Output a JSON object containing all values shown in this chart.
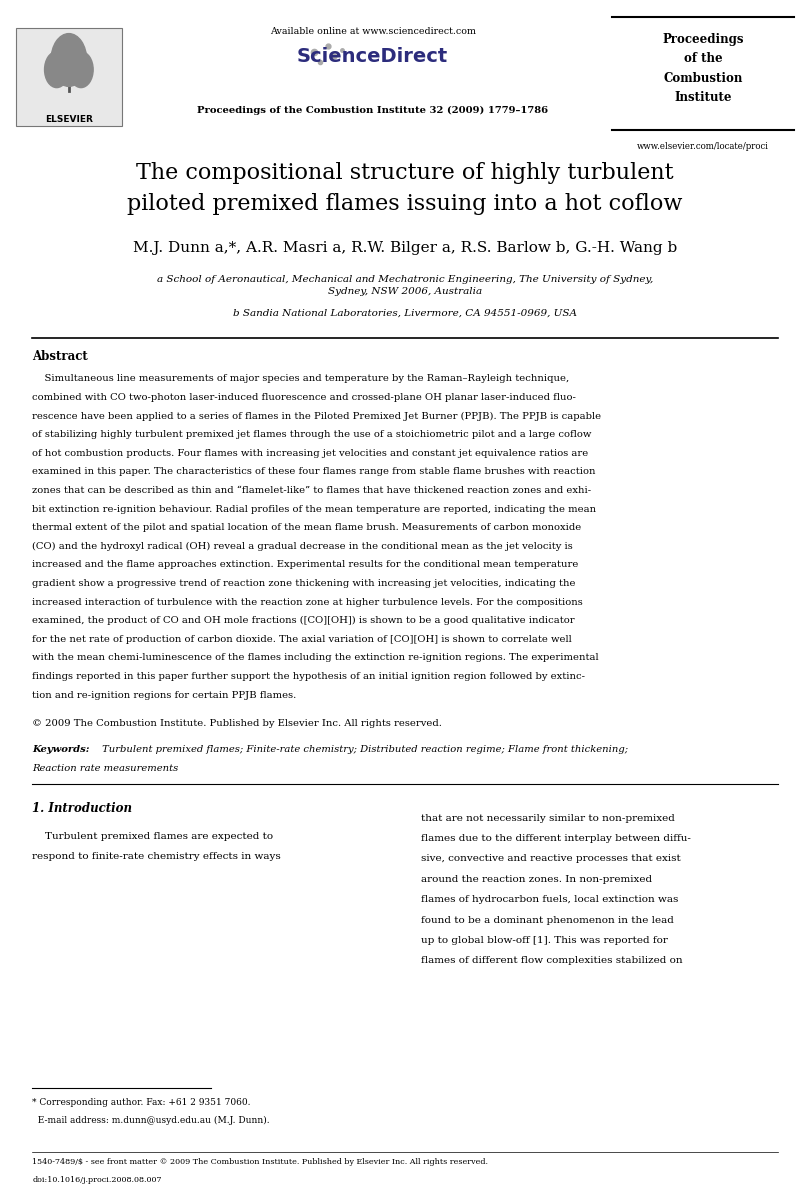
{
  "background_color": "#ffffff",
  "header": {
    "available_online_text": "Available online at www.sciencedirect.com",
    "sciencedirect_text": "ScienceDirect",
    "journal_line": "Proceedings of the Combustion Institute 32 (2009) 1779–1786",
    "proceedings_box": "Proceedings\nof the\nCombustion\nInstitute",
    "website": "www.elsevier.com/locate/proci"
  },
  "title": "The compositional structure of highly turbulent\npiloted premixed flames issuing into a hot coflow",
  "authors": "M.J. Dunn a,*, A.R. Masri a, R.W. Bilger a, R.S. Barlow b, G.-H. Wang b",
  "affil_a": "a School of Aeronautical, Mechanical and Mechatronic Engineering, The University of Sydney,\nSydney, NSW 2006, Australia",
  "affil_b": "b Sandia National Laboratories, Livermore, CA 94551-0969, USA",
  "abstract_title": "Abstract",
  "abstract_text": "    Simultaneous line measurements of major species and temperature by the Raman–Rayleigh technique, combined with CO two-photon laser-induced fluorescence and crossed-plane OH planar laser-induced fluorescence have been applied to a series of flames in the Piloted Premixed Jet Burner (PPJB). The PPJB is capable of stabilizing highly turbulent premixed jet flames through the use of a stoichiometric pilot and a large coflow of hot combustion products. Four flames with increasing jet velocities and constant jet equivalence ratios are examined in this paper. The characteristics of these four flames range from stable flame brushes with reaction zones that can be described as thin and “flamelet-like” to flames that have thickened reaction zones and exhibit extinction re-ignition behaviour. Radial profiles of the mean temperature are reported, indicating the mean thermal extent of the pilot and spatial location of the mean flame brush. Measurements of carbon monoxide (CO) and the hydroxyl radical (OH) reveal a gradual decrease in the conditional mean as the jet velocity is increased and the flame approaches extinction. Experimental results for the conditional mean temperature gradient show a progressive trend of reaction zone thickening with increasing jet velocities, indicating the increased interaction of turbulence with the reaction zone at higher turbulence levels. For the compositions examined, the product of CO and OH mole fractions ([CO][OH]) is shown to be a good qualitative indicator for the net rate of production of carbon dioxide. The axial variation of [CO][OH] is shown to correlate well with the mean chemi-luminescence of the flames including the extinction re-ignition regions. The experimental findings reported in this paper further support the hypothesis of an initial ignition region followed by extinction and re-ignition regions for certain PPJB flames.",
  "copyright_text": "© 2009 The Combustion Institute. Published by Elsevier Inc. All rights reserved.",
  "keywords_label": "Keywords:",
  "keywords_text": "Turbulent premixed flames; Finite-rate chemistry; Distributed reaction regime; Flame front thickening;\nReaction rate measurements",
  "section_title": "1. Introduction",
  "intro_left": "    Turbulent premixed flames are expected to\nrespond to finite-rate chemistry effects in ways",
  "intro_right": "that are not necessarily similar to non-premixed\nflames due to the different interplay between diffu-\nsive, convective and reactive processes that exist\naround the reaction zones. In non-premixed\nflames of hydrocarbon fuels, local extinction was\nfound to be a dominant phenomenon in the lead\nup to global blow-off [1]. This was reported for\nflames of different flow complexities stabilized on",
  "footnote_text": "* Corresponding author. Fax: +61 2 9351 7060.\n  E-mail address: m.dunn@usyd.edu.au (M.J. Dunn).",
  "bottom_line1": "1540-7489/$ - see front matter © 2009 The Combustion Institute. Published by Elsevier Inc. All rights reserved.",
  "bottom_line2": "doi:10.1016/j.proci.2008.08.007"
}
